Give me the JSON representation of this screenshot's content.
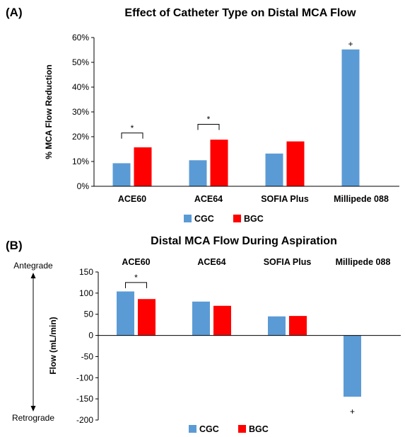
{
  "colors": {
    "CGC": "#5B9BD5",
    "BGC": "#FF0000",
    "axis": "#000000"
  },
  "chart_data": [
    {
      "type": "bar",
      "panel_label": "(A)",
      "title": "Effect of Catheter Type on Distal MCA Flow",
      "ylabel": "% MCA Flow Reduction",
      "xlabel": "",
      "ylim": [
        0,
        0.6
      ],
      "yticks": [
        0,
        0.1,
        0.2,
        0.3,
        0.4,
        0.5,
        0.6
      ],
      "ytick_labels": [
        "0%",
        "10%",
        "20%",
        "30%",
        "40%",
        "50%",
        "60%"
      ],
      "categories": [
        "ACE60",
        "ACE64",
        "SOFIA Plus",
        "Millipede 088"
      ],
      "category_labels_position": "bottom",
      "series": [
        {
          "name": "CGC",
          "values": [
            0.093,
            0.105,
            0.132,
            0.552
          ]
        },
        {
          "name": "BGC",
          "values": [
            0.157,
            0.188,
            0.181,
            null
          ]
        }
      ],
      "annotations": [
        {
          "text": "*",
          "category_index": 0,
          "type": "bracket",
          "y": 0.215
        },
        {
          "text": "*",
          "category_index": 1,
          "type": "bracket",
          "y": 0.25
        },
        {
          "text": "+",
          "category_index": 3,
          "type": "mark",
          "y": 0.575
        }
      ],
      "legend": {
        "position": "bottom",
        "entries": [
          "CGC",
          "BGC"
        ]
      },
      "grid": false
    },
    {
      "type": "bar",
      "panel_label": "(B)",
      "title": "Distal MCA Flow During Aspiration",
      "ylabel": "Flow (mL/min)",
      "xlabel": "",
      "ylim": [
        -200,
        150
      ],
      "yticks": [
        150,
        100,
        50,
        0,
        -50,
        -100,
        -150,
        -200
      ],
      "ytick_labels": [
        "150",
        "100",
        "50",
        "0",
        "-50",
        "-100",
        "-150",
        "-200"
      ],
      "categories": [
        "ACE60",
        "ACE64",
        "SOFIA Plus",
        "Millipede 088"
      ],
      "category_labels_position": "top",
      "series": [
        {
          "name": "CGC",
          "values": [
            104,
            80,
            45,
            -145
          ]
        },
        {
          "name": "BGC",
          "values": [
            86,
            70,
            46,
            null
          ]
        }
      ],
      "annotations": [
        {
          "text": "*",
          "category_index": 0,
          "type": "bracket",
          "y": 125
        },
        {
          "text": "+",
          "category_index": 3,
          "type": "mark",
          "y": -180
        }
      ],
      "direction_labels": {
        "top": "Antegrade",
        "bottom": "Retrograde"
      },
      "legend": {
        "position": "bottom",
        "entries": [
          "CGC",
          "BGC"
        ]
      },
      "grid": false
    }
  ]
}
